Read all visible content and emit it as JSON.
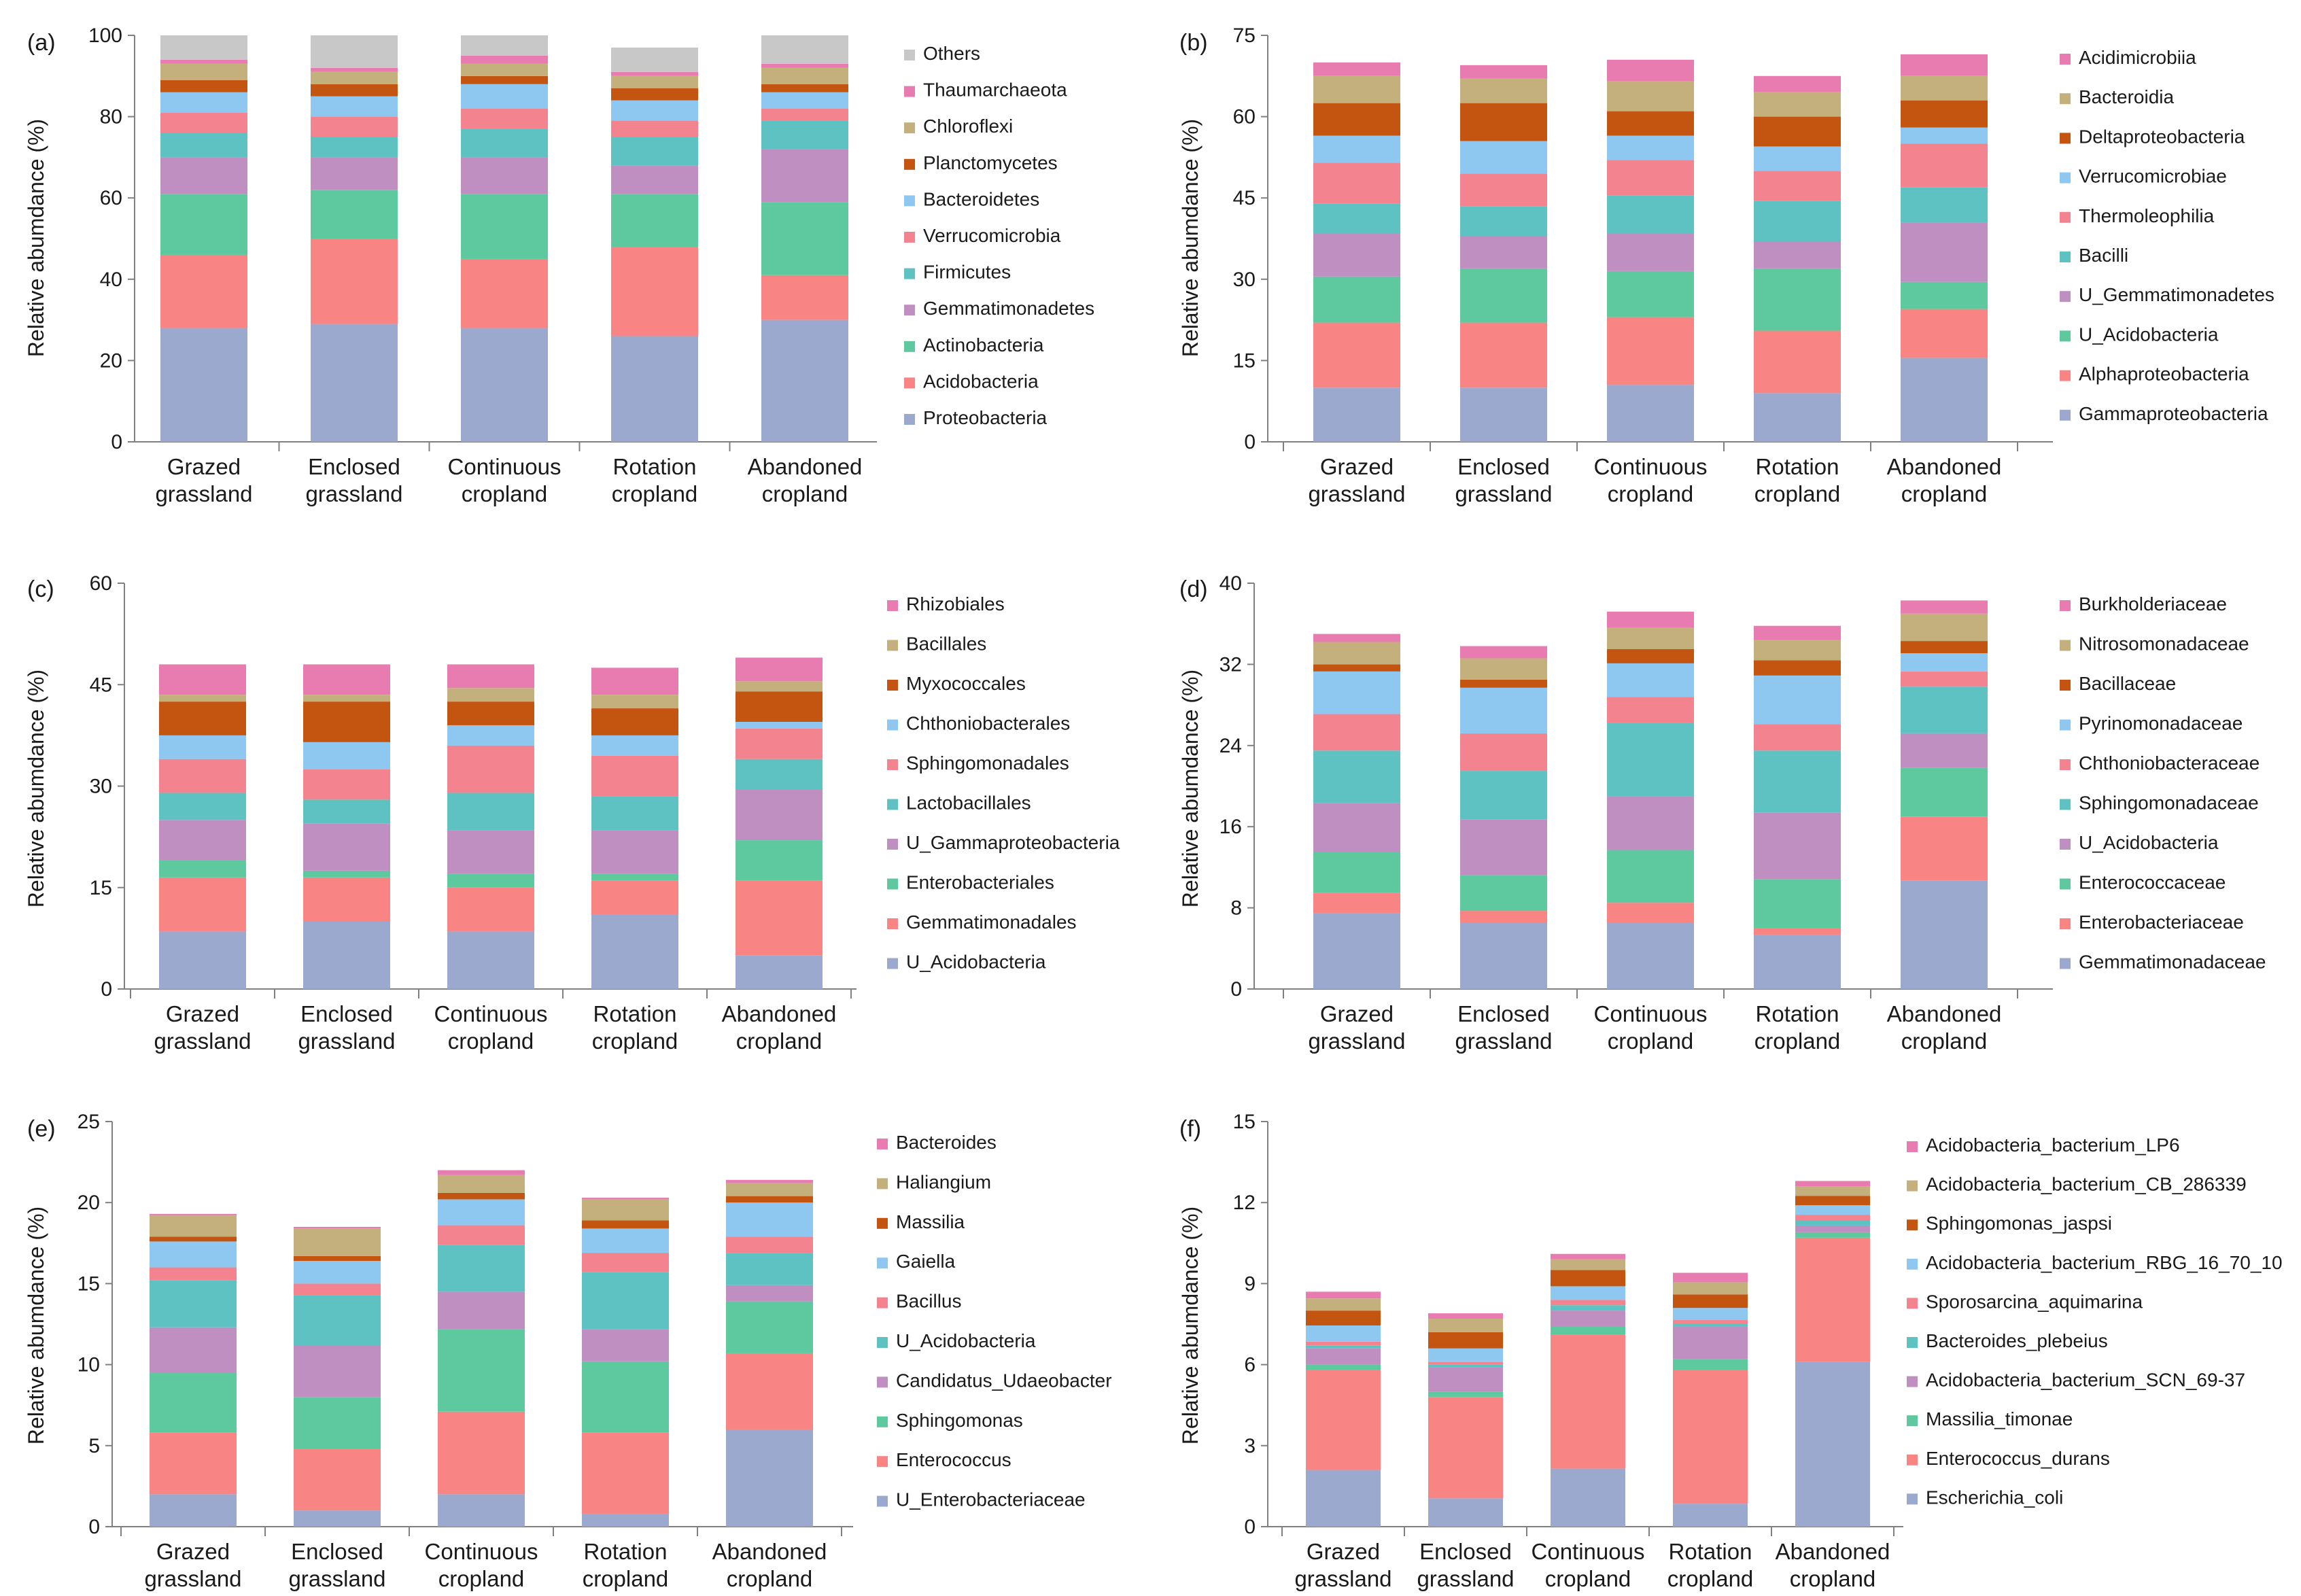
{
  "figure": {
    "categories": [
      "Grazed grassland",
      "Enclosed grassland",
      "Continuous cropland",
      "Rotation cropland",
      "Abandoned cropland"
    ],
    "category_lines": [
      [
        "Grazed",
        "grassland"
      ],
      [
        "Enclosed",
        "grassland"
      ],
      [
        "Continuous",
        "cropland"
      ],
      [
        "Rotation",
        "cropland"
      ],
      [
        "Abandoned",
        "cropland"
      ]
    ],
    "ylabel": "Relative abumdance (%)"
  },
  "chart_data": [
    {
      "type": "bar",
      "stacked": true,
      "panel": "(a)",
      "ylabel": "Relative abumdance (%)",
      "categories": [
        "Grazed grassland",
        "Enclosed grassland",
        "Continuous cropland",
        "Rotation cropland",
        "Abandoned cropland"
      ],
      "ylim": [
        0,
        100
      ],
      "yticks": [
        0,
        20,
        40,
        60,
        80,
        100
      ],
      "series": [
        {
          "name": "Proteobacteria",
          "color": "#9aa9cd",
          "values": [
            28,
            29,
            28,
            26,
            30
          ]
        },
        {
          "name": "Acidobacteria",
          "color": "#f88484",
          "values": [
            18,
            21,
            17,
            22,
            11
          ]
        },
        {
          "name": "Actinobacteria",
          "color": "#5ec89e",
          "values": [
            15,
            12,
            16,
            13,
            18
          ]
        },
        {
          "name": "Gemmatimonadetes",
          "color": "#bf8fc1",
          "values": [
            9,
            8,
            9,
            7,
            13
          ]
        },
        {
          "name": "Firmicutes",
          "color": "#5ec2c2",
          "values": [
            6,
            5,
            7,
            7,
            7
          ]
        },
        {
          "name": "Verrucomicrobia",
          "color": "#f3838f",
          "values": [
            5,
            5,
            5,
            4,
            3
          ]
        },
        {
          "name": "Bacteroidetes",
          "color": "#8ec7ef",
          "values": [
            5,
            5,
            6,
            5,
            4
          ]
        },
        {
          "name": "Planctomycetes",
          "color": "#c45510",
          "values": [
            3,
            3,
            2,
            3,
            2
          ]
        },
        {
          "name": "Chloroflexi",
          "color": "#c4b07c",
          "values": [
            4,
            3,
            3,
            3,
            4
          ]
        },
        {
          "name": "Thaumarchaeota",
          "color": "#e87cb0",
          "values": [
            1,
            1,
            2,
            1,
            1
          ]
        },
        {
          "name": "Others",
          "color": "#c8c8c8",
          "values": [
            6,
            8,
            5,
            6,
            7
          ]
        }
      ]
    },
    {
      "type": "bar",
      "stacked": true,
      "panel": "(b)",
      "ylabel": "Relative abumdance (%)",
      "categories": [
        "Grazed grassland",
        "Enclosed grassland",
        "Continuous cropland",
        "Rotation cropland",
        "Abandoned cropland"
      ],
      "ylim": [
        0,
        75
      ],
      "yticks": [
        0,
        15,
        30,
        45,
        60,
        75
      ],
      "series": [
        {
          "name": "Gammaproteobacteria",
          "color": "#9aa9cd",
          "values": [
            10,
            10,
            10.5,
            9,
            15.5
          ]
        },
        {
          "name": "Alphaproteobacteria",
          "color": "#f88484",
          "values": [
            12,
            12,
            12.5,
            11.5,
            9
          ]
        },
        {
          "name": "U_Acidobacteria",
          "color": "#5ec89e",
          "values": [
            8.5,
            10,
            8.5,
            11.5,
            5
          ]
        },
        {
          "name": "U_Gemmatimonadetes",
          "color": "#bf8fc1",
          "values": [
            8,
            6,
            7,
            5,
            11
          ]
        },
        {
          "name": "Bacilli",
          "color": "#5ec2c2",
          "values": [
            5.5,
            5.5,
            7,
            7.5,
            6.5
          ]
        },
        {
          "name": "Thermoleophilia",
          "color": "#f3838f",
          "values": [
            7.5,
            6,
            6.5,
            5.5,
            8
          ]
        },
        {
          "name": "Verrucomicrobiae",
          "color": "#8ec7ef",
          "values": [
            5,
            6,
            4.5,
            4.5,
            3
          ]
        },
        {
          "name": "Deltaproteobacteria",
          "color": "#c45510",
          "values": [
            6,
            7,
            4.5,
            5.5,
            5
          ]
        },
        {
          "name": "Bacteroidia",
          "color": "#c4b07c",
          "values": [
            5,
            4.5,
            5.5,
            4.5,
            4.5
          ]
        },
        {
          "name": "Acidimicrobiia",
          "color": "#e87cb0",
          "values": [
            2.5,
            2.5,
            4,
            3,
            4
          ]
        }
      ]
    },
    {
      "type": "bar",
      "stacked": true,
      "panel": "(c)",
      "ylabel": "Relative abumdance (%)",
      "categories": [
        "Grazed grassland",
        "Enclosed grassland",
        "Continuous cropland",
        "Rotation cropland",
        "Abandoned cropland"
      ],
      "ylim": [
        0,
        60
      ],
      "yticks": [
        0,
        15,
        30,
        45,
        60
      ],
      "series": [
        {
          "name": "U_Acidobacteria",
          "color": "#9aa9cd",
          "values": [
            8.5,
            10,
            8.5,
            11,
            5
          ]
        },
        {
          "name": "Gemmatimonadales",
          "color": "#f88484",
          "values": [
            8,
            6.5,
            6.5,
            5,
            11
          ]
        },
        {
          "name": "Enterobacteriales",
          "color": "#5ec89e",
          "values": [
            2.5,
            1,
            2,
            1,
            6
          ]
        },
        {
          "name": "U_Gammaproteobacteria",
          "color": "#bf8fc1",
          "values": [
            6,
            7,
            6.5,
            6.5,
            7.5
          ]
        },
        {
          "name": "Lactobacillales",
          "color": "#5ec2c2",
          "values": [
            4,
            3.5,
            5.5,
            5,
            4.5
          ]
        },
        {
          "name": "Sphingomonadales",
          "color": "#f3838f",
          "values": [
            5,
            4.5,
            7,
            6,
            4.5
          ]
        },
        {
          "name": "Chthoniobacterales",
          "color": "#8ec7ef",
          "values": [
            3.5,
            4,
            3,
            3,
            1
          ]
        },
        {
          "name": "Myxococcales",
          "color": "#c45510",
          "values": [
            5,
            6,
            3.5,
            4,
            4.5
          ]
        },
        {
          "name": "Bacillales",
          "color": "#c4b07c",
          "values": [
            1,
            1,
            2,
            2,
            1.5
          ]
        },
        {
          "name": "Rhizobiales",
          "color": "#e87cb0",
          "values": [
            4.5,
            4.5,
            3.5,
            4,
            3.5
          ]
        }
      ]
    },
    {
      "type": "bar",
      "stacked": true,
      "panel": "(d)",
      "ylabel": "Relative abumdance (%)",
      "categories": [
        "Grazed grassland",
        "Enclosed grassland",
        "Continuous cropland",
        "Rotation cropland",
        "Abandoned cropland"
      ],
      "ylim": [
        0,
        40
      ],
      "yticks": [
        0,
        8,
        16,
        24,
        32,
        40
      ],
      "series": [
        {
          "name": "Gemmatimonadaceae",
          "color": "#9aa9cd",
          "values": [
            7.5,
            6.5,
            6.5,
            5.3,
            10.7
          ]
        },
        {
          "name": "Enterobacteriaceae",
          "color": "#f88484",
          "values": [
            2,
            1.2,
            2,
            0.7,
            6.3
          ]
        },
        {
          "name": "Enterococcaceae",
          "color": "#5ec89e",
          "values": [
            4,
            3.5,
            5.2,
            4.8,
            4.8
          ]
        },
        {
          "name": "U_Acidobacteria",
          "color": "#bf8fc1",
          "values": [
            4.8,
            5.5,
            5.3,
            6.6,
            3.4
          ]
        },
        {
          "name": "Sphingomonadaceae",
          "color": "#5ec2c2",
          "values": [
            5.2,
            4.8,
            7.2,
            6.1,
            4.6
          ]
        },
        {
          "name": "Chthoniobacteraceae",
          "color": "#f3838f",
          "values": [
            3.6,
            3.7,
            2.6,
            2.6,
            1.5
          ]
        },
        {
          "name": "Pyrinomonadaceae",
          "color": "#8ec7ef",
          "values": [
            4.2,
            4.5,
            3.3,
            4.8,
            1.8
          ]
        },
        {
          "name": "Bacillaceae",
          "color": "#c45510",
          "values": [
            0.7,
            0.8,
            1.4,
            1.5,
            1.2
          ]
        },
        {
          "name": "Nitrosomonadaceae",
          "color": "#c4b07c",
          "values": [
            2.2,
            2.1,
            2.1,
            2,
            2.7
          ]
        },
        {
          "name": "Burkholderiaceae",
          "color": "#e87cb0",
          "values": [
            0.8,
            1.2,
            1.6,
            1.4,
            1.3
          ]
        }
      ]
    },
    {
      "type": "bar",
      "stacked": true,
      "panel": "(e)",
      "ylabel": "Relative abumdance (%)",
      "categories": [
        "Grazed grassland",
        "Enclosed grassland",
        "Continuous cropland",
        "Rotation cropland",
        "Abandoned cropland"
      ],
      "ylim": [
        0,
        25
      ],
      "yticks": [
        0,
        5,
        10,
        15,
        20,
        25
      ],
      "series": [
        {
          "name": "U_Enterobacteriaceae",
          "color": "#9aa9cd",
          "values": [
            2,
            1,
            2,
            0.8,
            6
          ]
        },
        {
          "name": "Enterococcus",
          "color": "#f88484",
          "values": [
            3.8,
            3.8,
            5.1,
            5,
            4.7
          ]
        },
        {
          "name": "Sphingomonas",
          "color": "#5ec89e",
          "values": [
            3.7,
            3.2,
            5.1,
            4.4,
            3.2
          ]
        },
        {
          "name": "Candidatus_Udaeobacter",
          "color": "#bf8fc1",
          "values": [
            2.8,
            3.2,
            2.3,
            2,
            1
          ]
        },
        {
          "name": "U_Acidobacteria",
          "color": "#5ec2c2",
          "values": [
            2.9,
            3.1,
            2.9,
            3.5,
            2
          ]
        },
        {
          "name": "Bacillus",
          "color": "#f3838f",
          "values": [
            0.8,
            0.7,
            1.2,
            1.2,
            1
          ]
        },
        {
          "name": "Gaiella",
          "color": "#8ec7ef",
          "values": [
            1.6,
            1.4,
            1.6,
            1.5,
            2.1
          ]
        },
        {
          "name": "Massilia",
          "color": "#c45510",
          "values": [
            0.3,
            0.3,
            0.4,
            0.5,
            0.4
          ]
        },
        {
          "name": "Haliangium",
          "color": "#c4b07c",
          "values": [
            1.3,
            1.7,
            1.1,
            1.3,
            0.8
          ]
        },
        {
          "name": "Bacteroides",
          "color": "#e87cb0",
          "values": [
            0.1,
            0.1,
            0.3,
            0.1,
            0.2
          ]
        }
      ]
    },
    {
      "type": "bar",
      "stacked": true,
      "panel": "(f)",
      "ylabel": "Relative abumdance (%)",
      "categories": [
        "Grazed grassland",
        "Enclosed grassland",
        "Continuous cropland",
        "Rotation cropland",
        "Abandoned cropland"
      ],
      "ylim": [
        0,
        15
      ],
      "yticks": [
        0,
        3,
        6,
        9,
        12,
        15
      ],
      "series": [
        {
          "name": "Escherichia_coli",
          "color": "#9aa9cd",
          "values": [
            2.1,
            1.05,
            2.15,
            0.85,
            6.1
          ]
        },
        {
          "name": "Enterococcus_durans",
          "color": "#f88484",
          "values": [
            3.7,
            3.75,
            4.95,
            4.95,
            4.6
          ]
        },
        {
          "name": "Massilia_timonae",
          "color": "#5ec89e",
          "values": [
            0.2,
            0.2,
            0.3,
            0.4,
            0.2
          ]
        },
        {
          "name": "Acidobacteria_bacterium_SCN_69-37",
          "color": "#bf8fc1",
          "values": [
            0.6,
            0.9,
            0.6,
            1.2,
            0.25
          ]
        },
        {
          "name": "Bacteroides_plebeius",
          "color": "#5ec2c2",
          "values": [
            0.1,
            0.1,
            0.2,
            0.1,
            0.2
          ]
        },
        {
          "name": "Sporosarcina_aquimarina",
          "color": "#f3838f",
          "values": [
            0.15,
            0.1,
            0.2,
            0.15,
            0.2
          ]
        },
        {
          "name": "Acidobacteria_bacterium_RBG_16_70_10",
          "color": "#8ec7ef",
          "values": [
            0.6,
            0.5,
            0.5,
            0.45,
            0.35
          ]
        },
        {
          "name": "Sphingomonas_jaspsi",
          "color": "#c45510",
          "values": [
            0.55,
            0.6,
            0.6,
            0.5,
            0.35
          ]
        },
        {
          "name": "Acidobacteria_bacterium_CB_286339",
          "color": "#c4b07c",
          "values": [
            0.45,
            0.5,
            0.4,
            0.45,
            0.35
          ]
        },
        {
          "name": "Acidobacteria_bacterium_LP6",
          "color": "#e87cb0",
          "values": [
            0.25,
            0.2,
            0.2,
            0.35,
            0.2
          ]
        }
      ]
    }
  ]
}
